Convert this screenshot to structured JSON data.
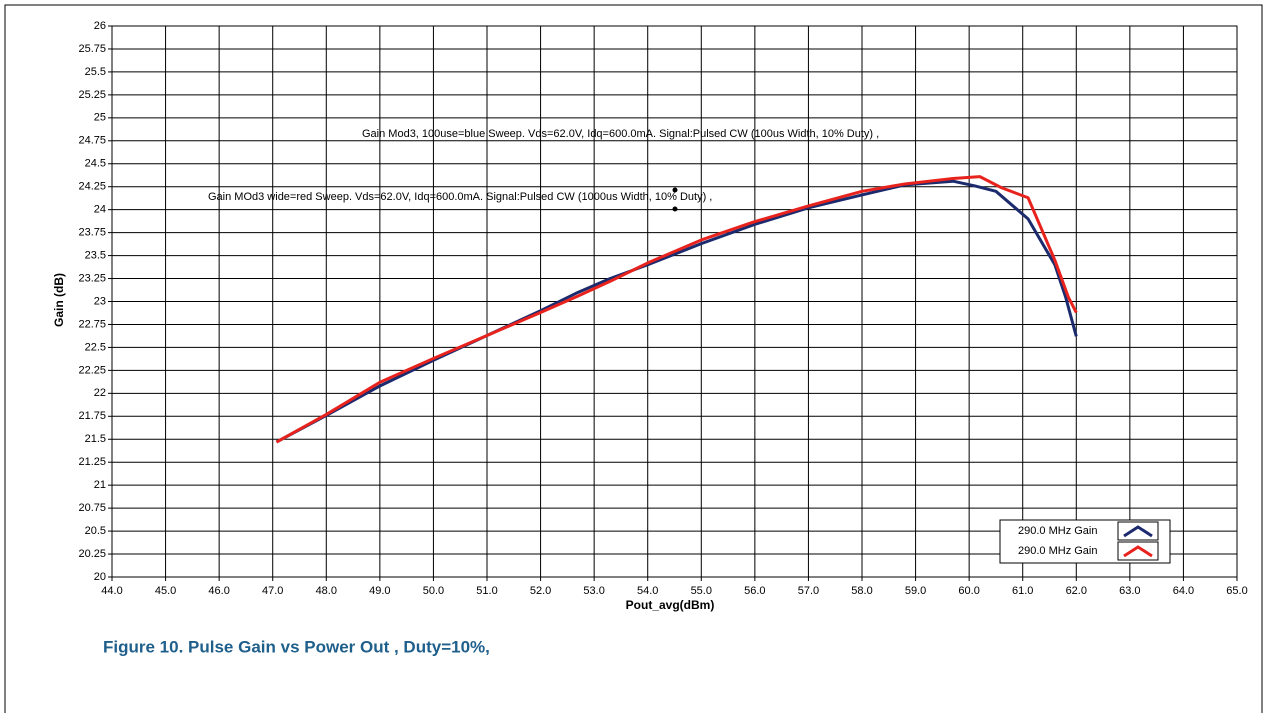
{
  "chart_data": {
    "type": "line",
    "x_label": "Pout_avg(dBm)",
    "y_label": "Gain (dB)",
    "caption": "Figure 10. Pulse Gain vs Power Out , Duty=10%,",
    "annotations": [
      "Gain Mod3, 100use=blue  Sweep. Vds=62.0V, Idq=600.0mA. Signal:Pulsed CW (100us Width, 10% Duty) ,",
      "Gain MOd3 wide=red Sweep. Vds=62.0V, Idq=600.0mA. Signal:Pulsed CW (1000us Width, 10% Duty) ,"
    ],
    "xlim": [
      44,
      65
    ],
    "ylim": [
      20,
      26
    ],
    "xticks": [
      {
        "value": 44,
        "label": "44.0"
      },
      {
        "value": 45,
        "label": "45.0"
      },
      {
        "value": 46,
        "label": "46.0"
      },
      {
        "value": 47,
        "label": "47.0"
      },
      {
        "value": 48,
        "label": "48.0"
      },
      {
        "value": 49,
        "label": "49.0"
      },
      {
        "value": 50,
        "label": "50.0"
      },
      {
        "value": 51,
        "label": "51.0"
      },
      {
        "value": 52,
        "label": "52.0"
      },
      {
        "value": 53,
        "label": "53.0"
      },
      {
        "value": 54,
        "label": "54.0"
      },
      {
        "value": 55,
        "label": "55.0"
      },
      {
        "value": 56,
        "label": "56.0"
      },
      {
        "value": 57,
        "label": "57.0"
      },
      {
        "value": 58,
        "label": "58.0"
      },
      {
        "value": 59,
        "label": "59.0"
      },
      {
        "value": 60,
        "label": "60.0"
      },
      {
        "value": 61,
        "label": "61.0"
      },
      {
        "value": 62,
        "label": "62.0"
      },
      {
        "value": 63,
        "label": "63.0"
      },
      {
        "value": 64,
        "label": "64.0"
      },
      {
        "value": 65,
        "label": "65.0"
      }
    ],
    "yticks": [
      20,
      20.25,
      20.5,
      20.75,
      21,
      21.25,
      21.5,
      21.75,
      22,
      22.25,
      22.5,
      22.75,
      23,
      23.25,
      23.5,
      23.75,
      24,
      24.25,
      24.5,
      24.75,
      25,
      25.25,
      25.5,
      25.75,
      26
    ],
    "grid": true,
    "legend": "lower right",
    "series": [
      {
        "name": "290.0 MHz Gain",
        "color": "#1c2a6e",
        "x": [
          47.07,
          48,
          49,
          50,
          51,
          52,
          52.7,
          53.3,
          54,
          55,
          56,
          57,
          58,
          58.8,
          59.7,
          60.1,
          60.5,
          61.1,
          61.6,
          61.8,
          62.0
        ],
        "values": [
          21.47,
          21.76,
          22.08,
          22.36,
          22.63,
          22.9,
          23.1,
          23.25,
          23.4,
          23.63,
          23.84,
          24.02,
          24.16,
          24.27,
          24.31,
          24.26,
          24.2,
          23.9,
          23.4,
          23.05,
          22.62
        ]
      },
      {
        "name": "290.0 MHz Gain",
        "color": "#e8231e",
        "x": [
          47.07,
          48,
          49,
          50,
          51,
          52,
          52.7,
          53.3,
          54,
          55,
          56,
          57,
          58,
          58.8,
          59.7,
          60.2,
          60.6,
          61.1,
          61.6,
          61.85,
          62.0
        ],
        "values": [
          21.47,
          21.77,
          22.12,
          22.38,
          22.63,
          22.88,
          23.06,
          23.22,
          23.42,
          23.67,
          23.87,
          24.04,
          24.2,
          24.28,
          24.34,
          24.36,
          24.24,
          24.13,
          23.45,
          23.05,
          22.88
        ]
      }
    ]
  }
}
